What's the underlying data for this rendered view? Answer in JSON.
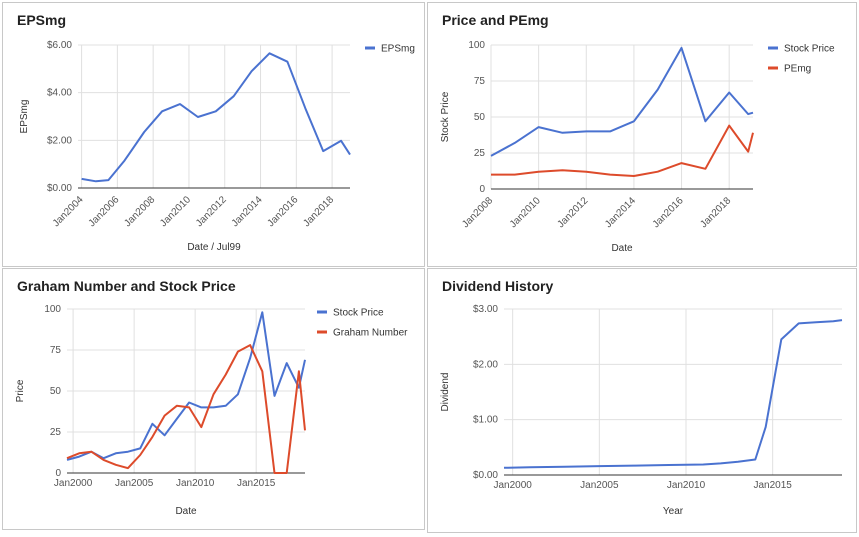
{
  "chart_data": [
    {
      "type": "line",
      "title": "EPSmg",
      "xlabel": "Date / Jul99",
      "ylabel": "EPSmg",
      "x_ticks": [
        "Jan2004",
        "Jan2006",
        "Jan2008",
        "Jan2010",
        "Jan2012",
        "Jan2014",
        "Jan2016",
        "Jan2018"
      ],
      "x_range": [
        2003.8,
        2019.0
      ],
      "y_ticks": [
        "$0.00",
        "$2.00",
        "$4.00",
        "$6.00"
      ],
      "y_tick_values": [
        0,
        2,
        4,
        6
      ],
      "ylim": [
        0,
        6
      ],
      "legend_position": "right",
      "grid": true,
      "x_label_rotation": true,
      "series": [
        {
          "name": "EPSmg",
          "color": "#4a72d0",
          "x": [
            2004.0,
            2004.8,
            2005.5,
            2006.4,
            2007.5,
            2008.5,
            2009.5,
            2010.5,
            2011.5,
            2012.5,
            2013.5,
            2014.5,
            2015.5,
            2016.5,
            2017.5,
            2018.5,
            2019.0
          ],
          "y": [
            0.38,
            0.28,
            0.33,
            1.15,
            2.35,
            3.22,
            3.52,
            2.98,
            3.22,
            3.85,
            4.9,
            5.65,
            5.3,
            3.35,
            1.55,
            1.98,
            1.4
          ]
        }
      ]
    },
    {
      "type": "line",
      "title": "Price and PEmg",
      "xlabel": "Date",
      "ylabel": "Stock Price",
      "x_ticks": [
        "Jan2008",
        "Jan2010",
        "Jan2012",
        "Jan2014",
        "Jan2016",
        "Jan2018"
      ],
      "x_range": [
        2008.0,
        2019.0
      ],
      "y_ticks": [
        "0",
        "25",
        "50",
        "75",
        "100"
      ],
      "y_tick_values": [
        0,
        25,
        50,
        75,
        100
      ],
      "ylim": [
        0,
        100
      ],
      "legend_position": "right",
      "grid": true,
      "x_label_rotation": true,
      "series": [
        {
          "name": "Stock Price",
          "color": "#4a72d0",
          "x": [
            2008.0,
            2009.0,
            2010.0,
            2011.0,
            2012.0,
            2013.0,
            2014.0,
            2015.0,
            2016.0,
            2017.0,
            2018.0,
            2018.8,
            2019.0
          ],
          "y": [
            23,
            32,
            43,
            39,
            40,
            40,
            47,
            69,
            98,
            47,
            67,
            52,
            53
          ]
        },
        {
          "name": "PEmg",
          "color": "#dd4b2b",
          "x": [
            2008.0,
            2009.0,
            2010.0,
            2011.0,
            2012.0,
            2013.0,
            2014.0,
            2015.0,
            2016.0,
            2017.0,
            2018.0,
            2018.8,
            2019.0
          ],
          "y": [
            10,
            10,
            12,
            13,
            12,
            10,
            9,
            12,
            18,
            14,
            44,
            26,
            39
          ]
        }
      ]
    },
    {
      "type": "line",
      "title": "Graham Number and Stock Price",
      "xlabel": "Date",
      "ylabel": "Price",
      "x_ticks": [
        "Jan2000",
        "Jan2005",
        "Jan2010",
        "Jan2015"
      ],
      "x_range": [
        1999.5,
        2019.0
      ],
      "y_ticks": [
        "0",
        "25",
        "50",
        "75",
        "100"
      ],
      "y_tick_values": [
        0,
        25,
        50,
        75,
        100
      ],
      "ylim": [
        0,
        100
      ],
      "legend_position": "right",
      "grid": true,
      "x_label_rotation": false,
      "series": [
        {
          "name": "Stock Price",
          "color": "#4a72d0",
          "x": [
            1999.5,
            2000.5,
            2001.5,
            2002.5,
            2003.5,
            2004.5,
            2005.5,
            2006.5,
            2007.5,
            2008.5,
            2009.5,
            2010.5,
            2011.5,
            2012.5,
            2013.5,
            2014.5,
            2015.5,
            2016.5,
            2017.5,
            2018.5,
            2019.0
          ],
          "y": [
            8,
            10,
            13,
            9,
            12,
            13,
            15,
            30,
            23,
            33,
            43,
            40,
            40,
            41,
            48,
            70,
            98,
            47,
            67,
            52,
            69
          ]
        },
        {
          "name": "Graham Number",
          "color": "#dd4b2b",
          "x": [
            1999.5,
            2000.5,
            2001.5,
            2002.5,
            2003.5,
            2004.5,
            2005.5,
            2006.5,
            2007.5,
            2008.5,
            2009.5,
            2010.5,
            2011.5,
            2012.5,
            2013.5,
            2014.5,
            2015.5,
            2016.5,
            2017.5,
            2018.5,
            2019.0
          ],
          "y": [
            9,
            12,
            13,
            8,
            5,
            3,
            11,
            22,
            35,
            41,
            40,
            28,
            48,
            60,
            74,
            78,
            62,
            0,
            0,
            62,
            26
          ]
        }
      ]
    },
    {
      "type": "line",
      "title": "Dividend History",
      "xlabel": "Year",
      "ylabel": "Dividend",
      "x_ticks": [
        "Jan2000",
        "Jan2005",
        "Jan2010",
        "Jan2015"
      ],
      "x_range": [
        1999.5,
        2019.0
      ],
      "y_ticks": [
        "$0.00",
        "$1.00",
        "$2.00",
        "$3.00"
      ],
      "y_tick_values": [
        0,
        1,
        2,
        3
      ],
      "ylim": [
        0,
        3
      ],
      "legend_position": "none",
      "grid": true,
      "x_label_rotation": false,
      "series": [
        {
          "color": "#4a72d0",
          "x": [
            1999.5,
            2001.0,
            2003.0,
            2005.0,
            2007.0,
            2009.0,
            2011.0,
            2012.0,
            2013.0,
            2014.0,
            2014.6,
            2015.5,
            2016.5,
            2017.5,
            2018.5,
            2019.0
          ],
          "y": [
            0.13,
            0.14,
            0.15,
            0.16,
            0.17,
            0.18,
            0.19,
            0.21,
            0.24,
            0.28,
            0.87,
            2.45,
            2.74,
            2.76,
            2.78,
            2.8
          ]
        }
      ]
    }
  ]
}
